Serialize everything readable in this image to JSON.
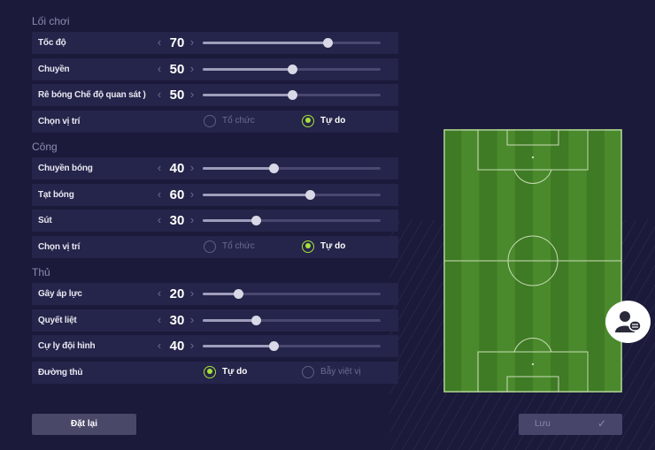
{
  "sections": [
    {
      "title": "Lối chơi",
      "rows": [
        {
          "label": "Tốc độ",
          "type": "slider",
          "value": 70
        },
        {
          "label": "Chuyền",
          "type": "slider",
          "value": 50
        },
        {
          "label": "Rê bóng Chế độ quan sát )",
          "type": "slider",
          "value": 50
        },
        {
          "label": "Chọn vị trí",
          "type": "radio",
          "options": [
            "Tổ chức",
            "Tự do"
          ],
          "selected": 1
        }
      ]
    },
    {
      "title": "Công",
      "rows": [
        {
          "label": "Chuyền bóng",
          "type": "slider",
          "value": 40
        },
        {
          "label": "Tạt bóng",
          "type": "slider",
          "value": 60
        },
        {
          "label": "Sút",
          "type": "slider",
          "value": 30
        },
        {
          "label": "Chọn vị trí",
          "type": "radio",
          "options": [
            "Tổ chức",
            "Tự do"
          ],
          "selected": 1
        }
      ]
    },
    {
      "title": "Thủ",
      "rows": [
        {
          "label": "Gây áp lực",
          "type": "slider",
          "value": 20
        },
        {
          "label": "Quyết liệt",
          "type": "slider",
          "value": 30
        },
        {
          "label": "Cự ly đội hình",
          "type": "slider",
          "value": 40
        },
        {
          "label": "Đường thủ",
          "type": "radio",
          "options": [
            "Tự do",
            "Bẫy việt vị"
          ],
          "selected": 0
        }
      ]
    }
  ],
  "buttons": {
    "reset": "Đặt lại",
    "save": "Lưu"
  },
  "icons": {
    "save_check": "✓",
    "chat": "user-chat-icon",
    "chevron_left": "‹",
    "chevron_right": "›"
  },
  "colors": {
    "accent": "#a6e23a",
    "pitch_dark": "#3f7a24",
    "pitch_light": "#4a8a2c"
  }
}
